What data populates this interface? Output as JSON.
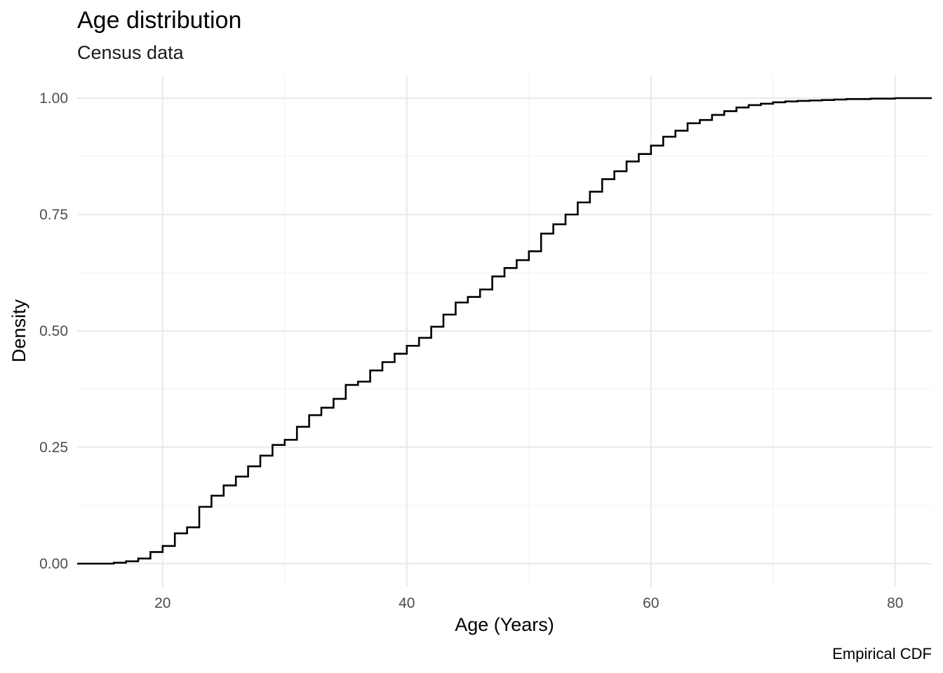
{
  "chart_data": {
    "type": "line",
    "geom": "step",
    "title": "Age distribution",
    "subtitle": "Census data",
    "xlabel": "Age (Years)",
    "ylabel": "Density",
    "caption": "Empirical CDF",
    "xlim": [
      13,
      83
    ],
    "ylim": [
      0,
      1
    ],
    "x_ticks": [
      20,
      40,
      60,
      80
    ],
    "x_tick_labels": [
      "20",
      "40",
      "60",
      "80"
    ],
    "y_ticks": [
      0,
      0.25,
      0.5,
      0.75,
      1
    ],
    "y_tick_labels": [
      "0.00",
      "0.25",
      "0.50",
      "0.75",
      "1.00"
    ],
    "grid": true,
    "legend": "none",
    "line_color": "#000000",
    "series": [
      {
        "x": [
          16,
          17,
          18,
          19,
          20,
          21,
          22,
          23,
          24,
          25,
          26,
          27,
          28,
          29,
          30,
          31,
          32,
          33,
          34,
          35,
          36,
          37,
          38,
          39,
          40,
          41,
          42,
          43,
          44,
          45,
          46,
          47,
          48,
          49,
          50,
          51,
          52,
          53,
          54,
          55,
          56,
          57,
          58,
          59,
          60,
          61,
          62,
          63,
          64,
          65,
          66,
          67,
          68,
          69,
          70,
          71,
          72,
          73,
          74,
          75,
          76,
          77,
          78,
          79,
          80,
          81,
          82
        ],
        "y": [
          0.002,
          0.005,
          0.011,
          0.025,
          0.038,
          0.065,
          0.078,
          0.122,
          0.146,
          0.168,
          0.187,
          0.209,
          0.232,
          0.255,
          0.266,
          0.294,
          0.319,
          0.335,
          0.354,
          0.384,
          0.391,
          0.415,
          0.433,
          0.451,
          0.468,
          0.485,
          0.509,
          0.535,
          0.561,
          0.573,
          0.589,
          0.617,
          0.635,
          0.652,
          0.671,
          0.709,
          0.729,
          0.75,
          0.776,
          0.799,
          0.826,
          0.843,
          0.864,
          0.88,
          0.898,
          0.917,
          0.93,
          0.946,
          0.953,
          0.964,
          0.972,
          0.98,
          0.985,
          0.988,
          0.991,
          0.993,
          0.994,
          0.995,
          0.996,
          0.997,
          0.998,
          0.998,
          0.999,
          0.999,
          1.0,
          1.0,
          1.0
        ]
      }
    ]
  }
}
